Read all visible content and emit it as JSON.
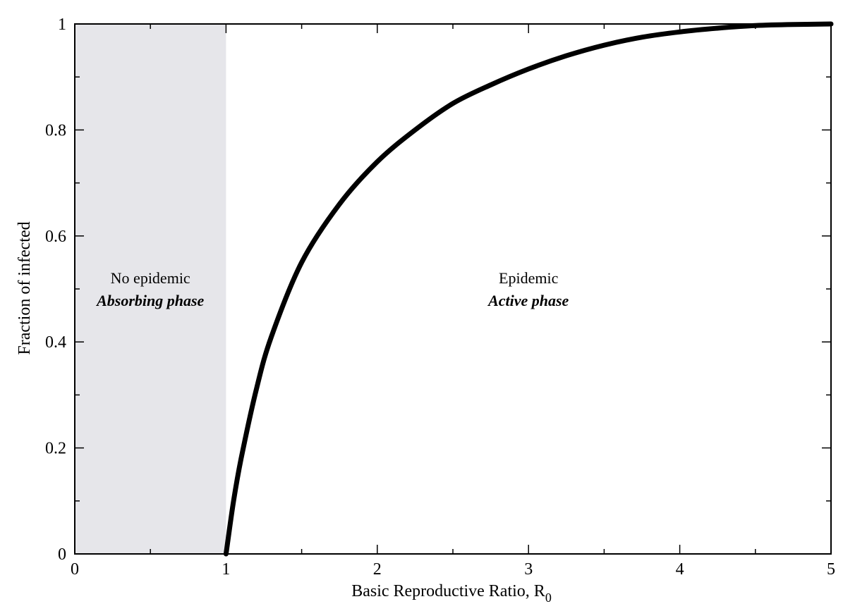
{
  "chart_data": {
    "type": "line",
    "xlabel": "Basic Reproductive Ratio, R",
    "xlabel_subscript": "0",
    "ylabel": "Fraction of infected",
    "xlim": [
      0,
      5
    ],
    "ylim": [
      0,
      1
    ],
    "x_ticks": [
      0,
      1,
      2,
      3,
      4,
      5
    ],
    "x_tick_labels": [
      "0",
      "1",
      "2",
      "3",
      "4",
      "5"
    ],
    "x_minor_ticks": [
      0.5,
      1.5,
      2.5,
      3.5,
      4.5
    ],
    "y_ticks": [
      0,
      0.2,
      0.4,
      0.6,
      0.8,
      1
    ],
    "y_tick_labels": [
      "0",
      "0.2",
      "0.4",
      "0.6",
      "0.8",
      "1"
    ],
    "y_minor_ticks": [
      0.1,
      0.3,
      0.5,
      0.7,
      0.9
    ],
    "grid": false,
    "shaded_region": {
      "x_range": [
        0,
        1
      ],
      "color": "#e6e6ea"
    },
    "series": [
      {
        "x": [
          1.0,
          1.01,
          1.05,
          1.1,
          1.2,
          1.3,
          1.5,
          1.75,
          2.0,
          2.25,
          2.5,
          2.75,
          3.0,
          3.25,
          3.5,
          3.75,
          4.0,
          4.25,
          4.5,
          4.75,
          5.0
        ],
        "values": [
          0.0,
          0.02,
          0.1,
          0.18,
          0.31,
          0.41,
          0.55,
          0.66,
          0.74,
          0.8,
          0.85,
          0.885,
          0.915,
          0.94,
          0.96,
          0.975,
          0.985,
          0.992,
          0.997,
          0.999,
          1.0
        ],
        "color": "#000000"
      }
    ],
    "annotations": [
      {
        "line1": "No epidemic",
        "line2": "Absorbing phase",
        "x": 0.5,
        "y": 0.5
      },
      {
        "line1": "Epidemic",
        "line2": "Active phase",
        "x": 3.0,
        "y": 0.5
      }
    ]
  }
}
